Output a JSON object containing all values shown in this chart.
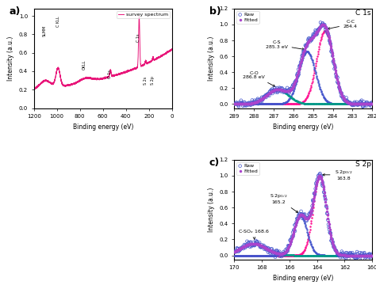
{
  "panel_a": {
    "label": "a)",
    "xlabel": "Binding energy (eV)",
    "ylabel": "Intensity (a.u.)",
    "color": "#E8177A",
    "legend": "survey spectrum"
  },
  "panel_b": {
    "label": "b)",
    "title": "C 1s",
    "xlabel": "Binding energy (eV)",
    "ylabel": "Intensity (a.u.)",
    "raw_color": "#4455CC",
    "fitted_color": "#AA44CC",
    "peak_CC_color": "#FF1493",
    "peak_CS_color": "#4455CC",
    "peak_CO_color": "#009988"
  },
  "panel_c": {
    "label": "c)",
    "title": "S 2p",
    "xlabel": "Binding energy (eV)",
    "ylabel": "Intensity (a.u.)",
    "raw_color": "#4455CC",
    "fitted_color": "#AA44CC",
    "peak_32_color": "#FF1493",
    "peak_12_color": "#4455CC",
    "peak_sox_color": "#009988"
  }
}
